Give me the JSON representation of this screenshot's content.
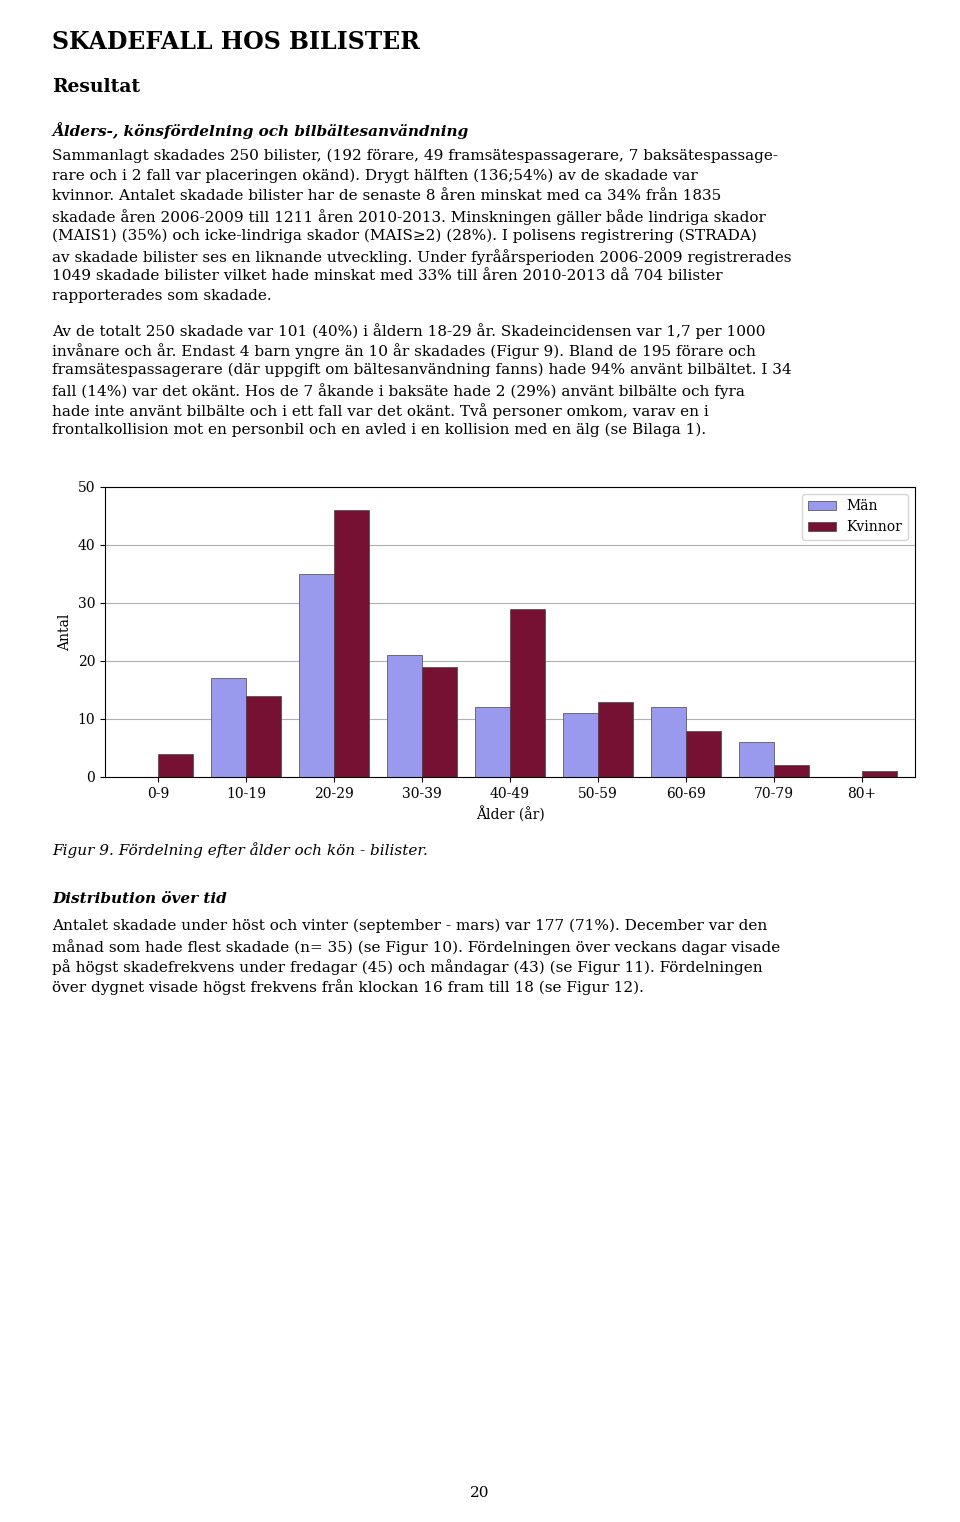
{
  "chart_data": {
    "type": "bar",
    "title": "Figur 9. Fördelning efter ålder och kön - bilister.",
    "xlabel": "Ålder (år)",
    "ylabel": "Antal",
    "categories": [
      "0-9",
      "10-19",
      "20-29",
      "30-39",
      "40-49",
      "50-59",
      "60-69",
      "70-79",
      "80+"
    ],
    "series": [
      {
        "name": "Män",
        "color": "#9999ee",
        "values": [
          0,
          17,
          35,
          21,
          12,
          11,
          12,
          6,
          0
        ]
      },
      {
        "name": "Kvinnor",
        "color": "#771133",
        "values": [
          4,
          14,
          46,
          19,
          29,
          13,
          8,
          2,
          1
        ]
      }
    ],
    "ylim": [
      0,
      50
    ],
    "yticks": [
      0,
      10,
      20,
      30,
      40,
      50
    ],
    "grid": true,
    "legend": "upper right",
    "annotations": [
      [
        [
          "SKADEFALL HOS BILISTER"
        ],
        [
          "Resultat"
        ],
        [
          "Ålders-, könsfördelning och bilbältesanvändning"
        ],
        [
          "Sammanlagt skadades 250 bilister, (192 förare, 49 framsätespassagerare, 7 baksätespassage-",
          "rare och i 2 fall var placeringen okänd). Drygt hälften (136;54%) av de skadade var",
          "kvinnor. Antalet skadade bilister har de senaste 8 åren minskat med ca 34% från 1835",
          "skadade åren 2006-2009 till 1211 åren 2010-2013. Minskningen gäller både lindriga skador",
          "(MAIS1) (35%) och icke-lindriga skador (MAIS≥2) (28%). I polisens registrering (STRADA)",
          "av skadade bilister ses en liknande utveckling. Under fyråårsperioden 2006-2009 registrerades",
          "1049 skadade bilister vilket hade minskat med 33% till åren 2010-2013 då 704 bilister",
          "rapporterades som skadade."
        ],
        [
          "Av de totalt 250 skadade var 101 (40%) i åldern 18-29 år. Skadeincidensen var 1,7 per 1000",
          "invånare och år. Endast 4 barn yngre än 10 år skadades (Figur 9). Bland de 195 förare och",
          "framsätespassagerare (där uppgift om bältesanvändning fanns) hade 94% använt bilbältet. I 34",
          "fall (14%) var det okänt. Hos de 7 åkande i baksäte hade 2 (29%) använt bilbälte och fyra",
          "hade inte använt bilbälte och i ett fall var det okänt. Två personer omkom, varav en i",
          "frontalkollision mot en personbil och en avled i en kollision med en älg (se Bilaga 1)."
        ]
      ],
      [
        [
          "Distribution över tid"
        ],
        [
          "Antalet skadade under höst och vinter (september - mars) var 177 (71%). December var den",
          "månad som hade flest skadade (n= 35) (se Figur 10). Fördelningen över veckans dagar visade",
          "på högst skadefrekvens under fredagar (45) och måndagar (43) (se Figur 11). Fördelningen",
          "över dygnet visade högst frekvens från klockan 16 fram till 18 (se Figur 12)."
        ],
        [
          "20"
        ]
      ]
    ]
  }
}
